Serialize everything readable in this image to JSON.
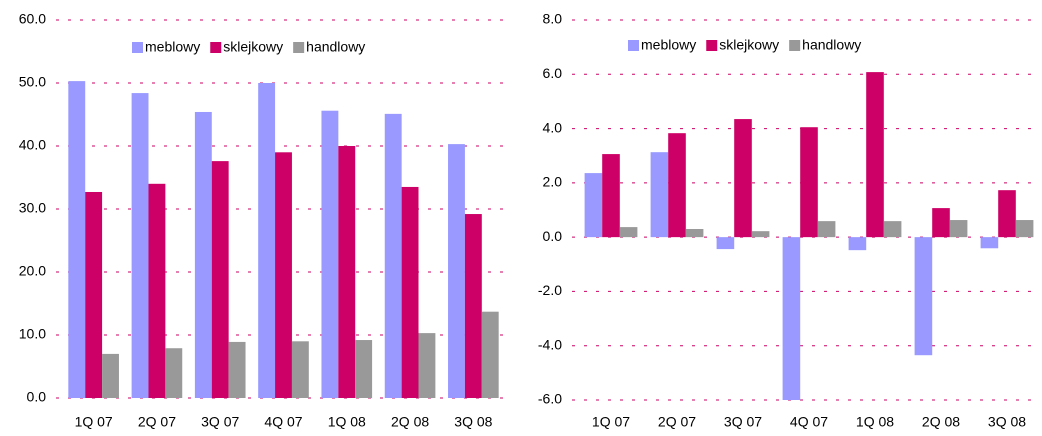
{
  "chart_data": [
    {
      "type": "bar",
      "categories": [
        "1Q 07",
        "2Q 07",
        "3Q 07",
        "4Q 07",
        "1Q 08",
        "2Q 08",
        "3Q 08"
      ],
      "series": [
        {
          "name": "meblowy",
          "color": "#9999ff",
          "values": [
            50.3,
            48.4,
            45.4,
            50.0,
            45.6,
            45.1,
            40.3
          ]
        },
        {
          "name": "sklejkowy",
          "color": "#cc0066",
          "values": [
            32.7,
            34.0,
            37.6,
            39.0,
            40.0,
            33.5,
            29.2
          ]
        },
        {
          "name": "handlowy",
          "color": "#999999",
          "values": [
            7.0,
            7.9,
            8.9,
            9.0,
            9.2,
            10.3,
            13.7
          ]
        }
      ],
      "ylim": [
        0,
        60
      ],
      "yticks": [
        {
          "value": 0,
          "label": "0.0"
        },
        {
          "value": 10,
          "label": "10.0"
        },
        {
          "value": 20,
          "label": "20.0"
        },
        {
          "value": 30,
          "label": "30.0"
        },
        {
          "value": 40,
          "label": "40.0"
        },
        {
          "value": 50,
          "label": "50.0"
        },
        {
          "value": 60,
          "label": "60.0"
        }
      ],
      "grid": true,
      "legend": "top"
    },
    {
      "type": "bar",
      "categories": [
        "1Q 07",
        "2Q 07",
        "3Q 07",
        "4Q 07",
        "1Q 08",
        "2Q 08",
        "3Q 08"
      ],
      "series": [
        {
          "name": "meblowy",
          "color": "#9999ff",
          "values": [
            2.36,
            3.13,
            -0.44,
            -6.0,
            -0.48,
            -4.35,
            -0.41
          ]
        },
        {
          "name": "sklejkowy",
          "color": "#cc0066",
          "values": [
            3.06,
            3.83,
            4.35,
            4.05,
            6.08,
            1.07,
            1.73
          ]
        },
        {
          "name": "handlowy",
          "color": "#999999",
          "values": [
            0.37,
            0.3,
            0.22,
            0.59,
            0.59,
            0.63,
            0.63
          ]
        }
      ],
      "ylim": [
        -6,
        8
      ],
      "yticks": [
        {
          "value": -6,
          "label": "-6.0"
        },
        {
          "value": -4,
          "label": "-4.0"
        },
        {
          "value": -2,
          "label": "-2.0"
        },
        {
          "value": 0,
          "label": "0.0"
        },
        {
          "value": 2,
          "label": "2.0"
        },
        {
          "value": 4,
          "label": "4.0"
        },
        {
          "value": 6,
          "label": "6.0"
        },
        {
          "value": 8,
          "label": "8.0"
        }
      ],
      "grid": true,
      "legend": "top"
    }
  ]
}
